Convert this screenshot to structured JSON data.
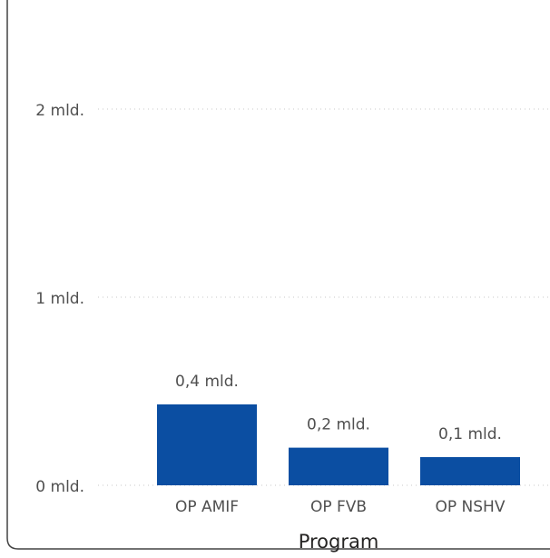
{
  "chart_data": {
    "type": "bar",
    "xlabel": "Program",
    "ylabel": "",
    "categories": [
      "OP AMIF",
      "OP FVB",
      "OP NSHV"
    ],
    "values": [
      0.43,
      0.2,
      0.15
    ],
    "data_labels": [
      "0,4 mld.",
      "0,2 mld.",
      "0,1 mld."
    ],
    "y_ticks": [
      {
        "value": 0,
        "label": "0 mld."
      },
      {
        "value": 1,
        "label": "1 mld."
      },
      {
        "value": 2,
        "label": "2 mld."
      }
    ],
    "ylim": [
      0,
      2.5
    ],
    "grid": true,
    "colors": {
      "bar": "#0B4EA2",
      "grid": "#c8c8c8",
      "text": "#505050",
      "axis_title": "#252423",
      "frame": "#444444"
    }
  }
}
